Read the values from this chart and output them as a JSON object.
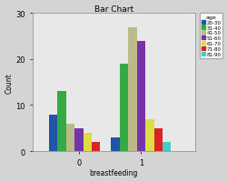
{
  "title": "Bar Chart",
  "xlabel": "breastfeeding",
  "ylabel": "Count",
  "legend_title": "age",
  "categories": [
    "0",
    "1"
  ],
  "age_groups": [
    "20-30",
    "31-40",
    "41-50",
    "51-60",
    "61-70",
    "71-80",
    "81-90"
  ],
  "colors": [
    "#2255aa",
    "#33aa44",
    "#bbbb88",
    "#7733aa",
    "#dddd44",
    "#dd2222",
    "#44cccc"
  ],
  "values_0": [
    8,
    13,
    6,
    5,
    4,
    2,
    0
  ],
  "values_1": [
    3,
    19,
    27,
    24,
    7,
    5,
    2
  ],
  "ylim": [
    0,
    30
  ],
  "yticks": [
    0,
    10,
    20,
    30
  ],
  "plot_bg_color": "#e8e8e8",
  "fig_bg_color": "#d4d4d4",
  "bar_width": 0.055,
  "group_centers": [
    0.35,
    0.75
  ]
}
